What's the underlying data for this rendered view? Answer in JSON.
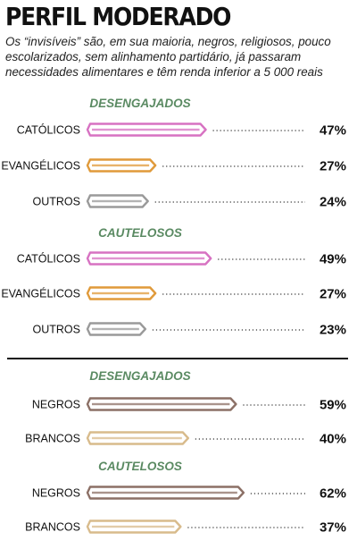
{
  "header": {
    "title": "PERFIL MODERADO",
    "subtitle": "Os “invisíveis” são, em sua maioria, negros, religiosos, pouco escolarizados, sem alinhamento partidário, já passaram necessidades alimentares e têm renda inferior a 5 000 reais"
  },
  "colors": {
    "section_heading": "#5a8a62",
    "pink": "#d772c2",
    "orange": "#e09a3a",
    "gray": "#9a9a9a",
    "brown": "#8c7066",
    "tan": "#d8bb8c"
  },
  "chart_data": [
    {
      "type": "bar",
      "title": "DESENGAJADOS",
      "categories": [
        "CATÓLICOS",
        "EVANGÉLICOS",
        "OUTROS"
      ],
      "values": [
        47,
        27,
        24
      ],
      "labels": [
        "47%",
        "27%",
        "24%"
      ],
      "colors": [
        "pink",
        "orange",
        "gray"
      ]
    },
    {
      "type": "bar",
      "title": "CAUTELOSOS",
      "categories": [
        "CATÓLICOS",
        "EVANGÉLICOS",
        "OUTROS"
      ],
      "values": [
        49,
        27,
        23
      ],
      "labels": [
        "49%",
        "27%",
        "23%"
      ],
      "colors": [
        "pink",
        "orange",
        "gray"
      ]
    },
    {
      "type": "bar",
      "title": "DESENGAJADOS",
      "categories": [
        "NEGROS",
        "BRANCOS"
      ],
      "values": [
        59,
        40
      ],
      "labels": [
        "59%",
        "40%"
      ],
      "colors": [
        "brown",
        "tan"
      ]
    },
    {
      "type": "bar",
      "title": "CAUTELOSOS",
      "categories": [
        "NEGROS",
        "BRANCOS"
      ],
      "values": [
        62,
        37
      ],
      "labels": [
        "62%",
        "37%"
      ],
      "colors": [
        "brown",
        "tan"
      ]
    }
  ]
}
